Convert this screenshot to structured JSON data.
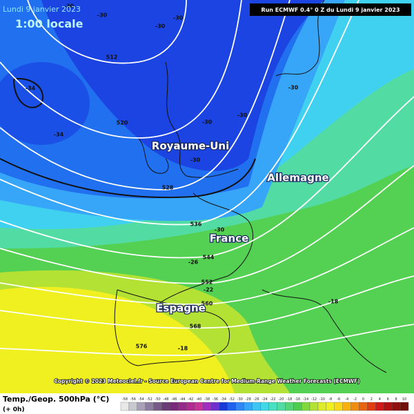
{
  "header": {
    "date": "Lundi 9 janvier 2023",
    "time": "1:00 locale",
    "run": "Run ECMWF 0.4° 0 Z du Lundi 9 janvier 2023"
  },
  "places": [
    "Royaume-Uni",
    "Allemagne",
    "France",
    "Espagne"
  ],
  "contour_labels": [
    -30,
    -30,
    -30,
    -30,
    512,
    -34,
    -34,
    520,
    -30,
    -30,
    -30,
    -30,
    528,
    536,
    -30,
    544,
    -26,
    552,
    -22,
    560,
    -18,
    568,
    576,
    -18
  ],
  "copyright": "Copyright © 2023 Meteociel.fr - Source European Centre for Medium-Range Weather Forecasts (ECMWF)",
  "legend": {
    "title": "Temp./Geop. 500hPa (°C)",
    "lead": "(+ 0h)",
    "ticks": [
      -58,
      -56,
      -54,
      -52,
      -50,
      -48,
      -46,
      -44,
      -42,
      -40,
      -38,
      -36,
      -34,
      -32,
      -30,
      -28,
      -26,
      -24,
      -22,
      -20,
      -18,
      -16,
      -14,
      -12,
      -10,
      -8,
      -6,
      -4,
      -2,
      0,
      2,
      4,
      6,
      8,
      10
    ],
    "colors": [
      "#e8e8e8",
      "#c8c8d0",
      "#a8a0b8",
      "#8c7ca0",
      "#785a88",
      "#6a3c78",
      "#7a2a7a",
      "#962a8a",
      "#b02a90",
      "#c8309a",
      "#a02cc0",
      "#7030d0",
      "#1838d8",
      "#2060ee",
      "#2f86f4",
      "#38a6f8",
      "#40c4f4",
      "#40d8e8",
      "#48e0c0",
      "#52dca4",
      "#58d478",
      "#50cc50",
      "#80d83c",
      "#b4e234",
      "#dcec28",
      "#f0f020",
      "#f8d818",
      "#f8b010",
      "#f08c10",
      "#e86410",
      "#e03c10",
      "#d01818",
      "#b01010",
      "#901010",
      "#701008"
    ]
  }
}
